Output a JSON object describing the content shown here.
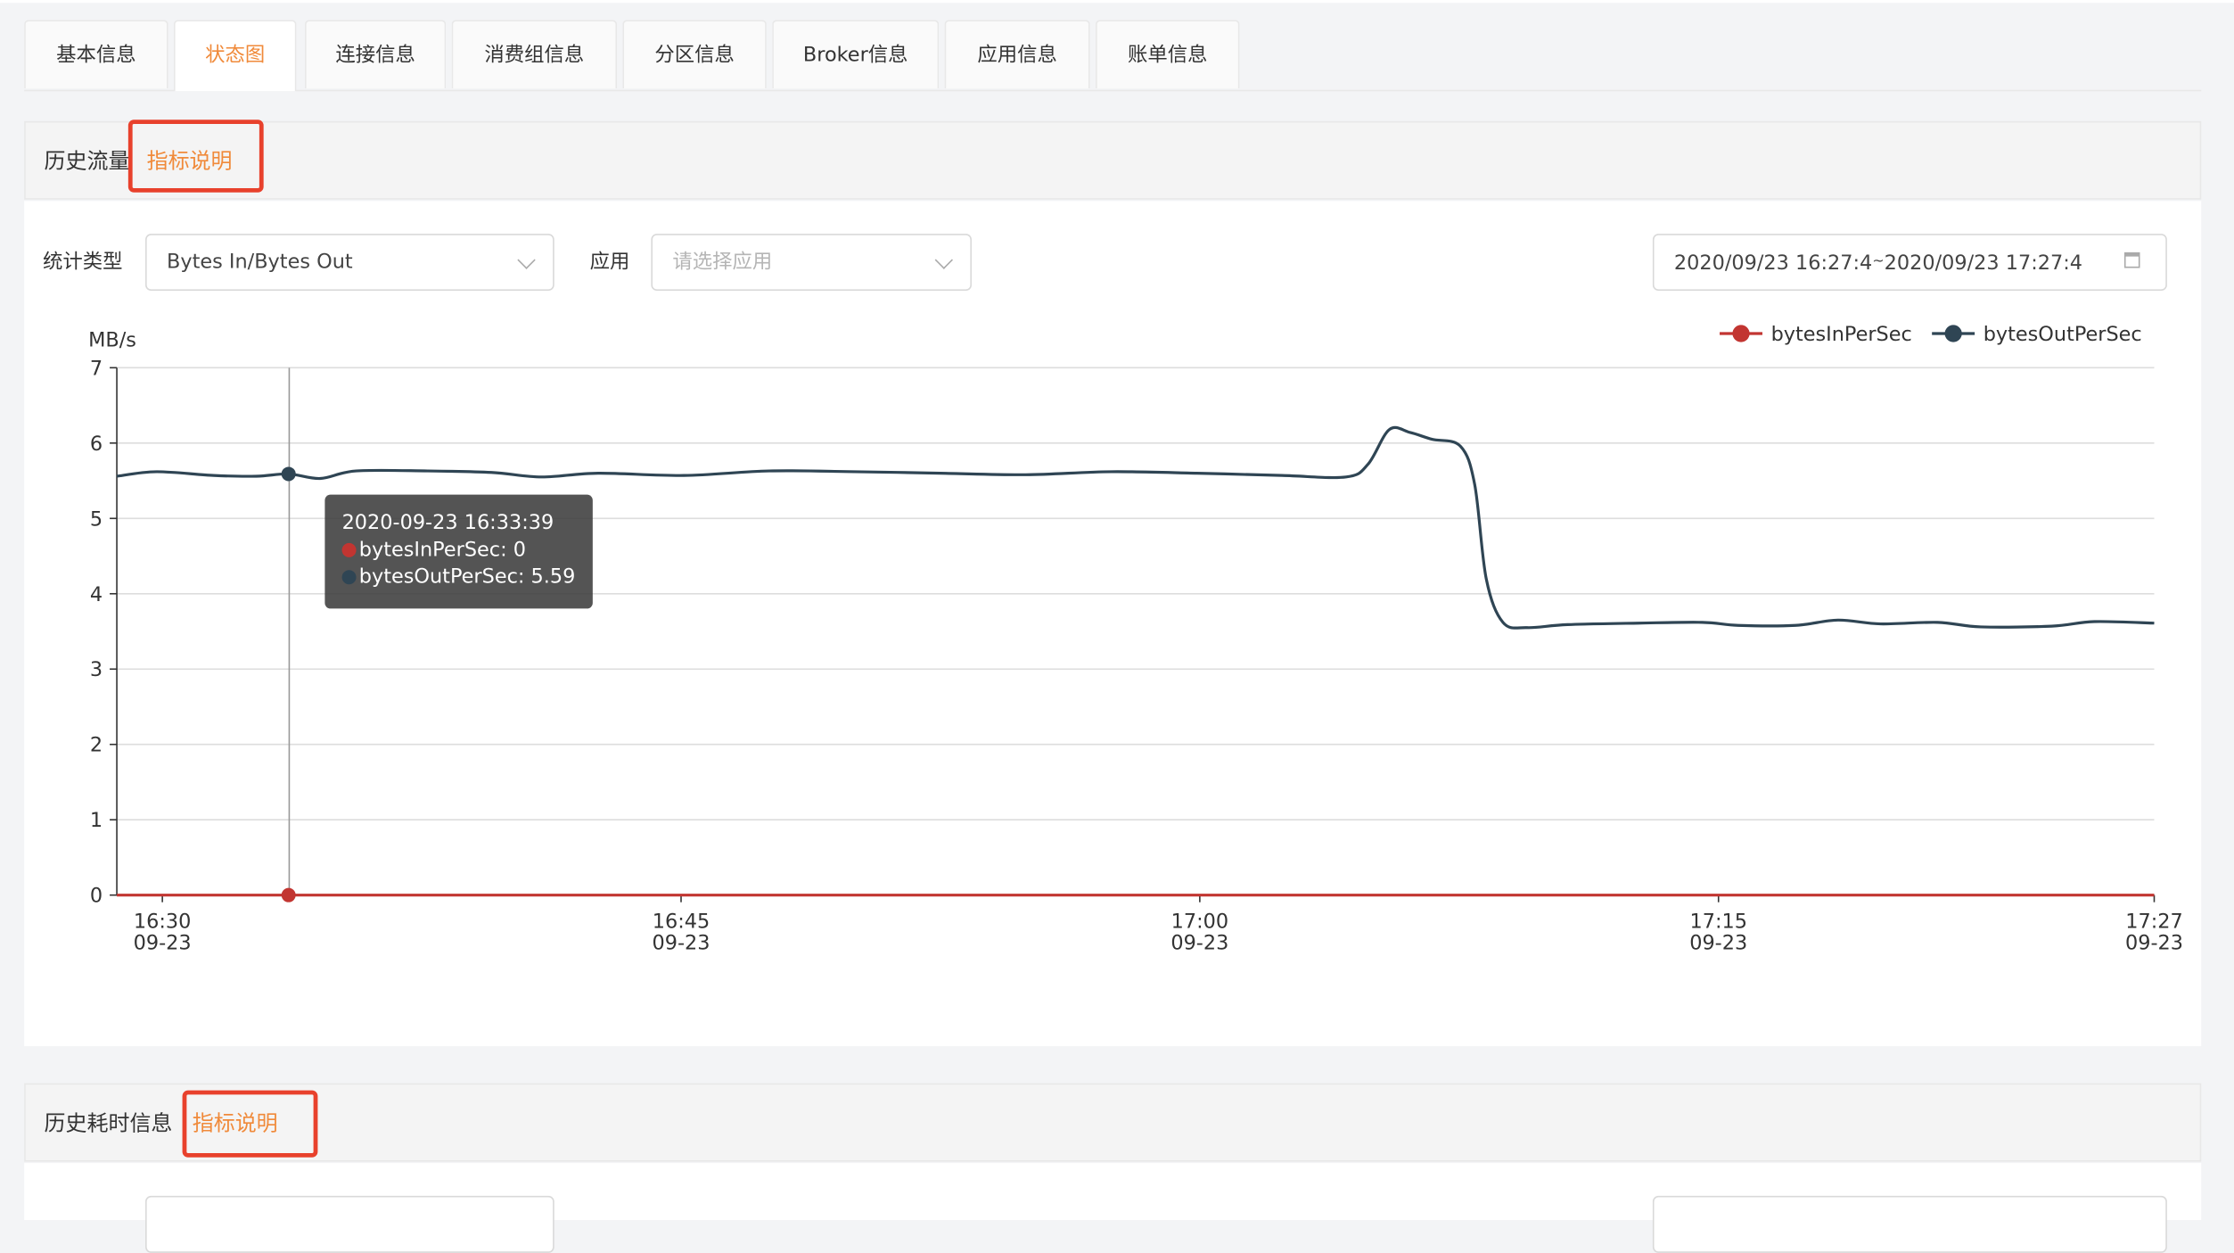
{
  "tabs": [
    {
      "label": "基本信息",
      "active": false
    },
    {
      "label": "状态图",
      "active": true
    },
    {
      "label": "连接信息",
      "active": false
    },
    {
      "label": "消费组信息",
      "active": false
    },
    {
      "label": "分区信息",
      "active": false
    },
    {
      "label": "Broker信息",
      "active": false
    },
    {
      "label": "应用信息",
      "active": false
    },
    {
      "label": "账单信息",
      "active": false
    }
  ],
  "section1": {
    "title": "历史流量",
    "link": "指标说明",
    "stat_type_label": "统计类型",
    "stat_type_value": "Bytes In/Bytes Out",
    "app_label": "应用",
    "app_placeholder": "请选择应用",
    "date_range": "2020/09/23 16:27:44 ~ 2020/09/23 17:27:44",
    "date_start": "2020/09/23 16:27:4",
    "date_sep": "~",
    "date_end": "2020/09/23 17:27:4"
  },
  "section2": {
    "title": "历史耗时信息",
    "link": "指标说明"
  },
  "tooltip": {
    "time": "2020-09-23 16:33:39",
    "line1": "bytesInPerSec: 0",
    "line2": "bytesOutPerSec: 5.59"
  },
  "colors": {
    "accent": "#f08a3a",
    "highlight": "#e8412c",
    "bytesIn": "#c23531",
    "bytesOut": "#2f4554"
  },
  "chart_data": {
    "type": "line",
    "ylabel": "MB/s",
    "ylim": [
      0,
      7
    ],
    "yticks": [
      "0",
      "1",
      "2",
      "3",
      "4",
      "5",
      "6",
      "7"
    ],
    "xlim": [
      "16:28:41",
      "17:27:36"
    ],
    "xticks": [
      {
        "time": "16:30:00",
        "label": "16:30",
        "date": "09-23"
      },
      {
        "time": "16:45:00",
        "label": "16:45",
        "date": "09-23"
      },
      {
        "time": "17:00:00",
        "label": "17:00",
        "date": "09-23"
      },
      {
        "time": "17:15:00",
        "label": "17:15",
        "date": "09-23"
      },
      {
        "time": "17:27:36",
        "label": "17:27",
        "date": "09-23"
      }
    ],
    "grid": true,
    "legend": "top-right",
    "hover_time": "16:33:39",
    "series": [
      {
        "name": "bytesInPerSec",
        "color": "#c23531",
        "points": [
          [
            "16:28:41",
            0
          ],
          [
            "17:27:36",
            0
          ]
        ]
      },
      {
        "name": "bytesOutPerSec",
        "color": "#2f4554",
        "points": [
          [
            "16:28:41",
            5.56
          ],
          [
            "16:29:50",
            5.62
          ],
          [
            "16:31:29",
            5.57
          ],
          [
            "16:32:43",
            5.56
          ],
          [
            "16:33:39",
            5.59
          ],
          [
            "16:34:34",
            5.53
          ],
          [
            "16:35:36",
            5.63
          ],
          [
            "16:37:40",
            5.63
          ],
          [
            "16:39:31",
            5.61
          ],
          [
            "16:40:58",
            5.55
          ],
          [
            "16:42:36",
            5.6
          ],
          [
            "16:45:05",
            5.57
          ],
          [
            "16:47:33",
            5.63
          ],
          [
            "16:50:01",
            5.62
          ],
          [
            "16:52:30",
            5.6
          ],
          [
            "16:54:58",
            5.58
          ],
          [
            "16:57:26",
            5.62
          ],
          [
            "16:59:55",
            5.6
          ],
          [
            "17:02:23",
            5.57
          ],
          [
            "17:04:14",
            5.55
          ],
          [
            "17:04:52",
            5.72
          ],
          [
            "17:05:29",
            6.18
          ],
          [
            "17:06:05",
            6.14
          ],
          [
            "17:06:43",
            6.05
          ],
          [
            "17:07:32",
            5.96
          ],
          [
            "17:07:57",
            5.45
          ],
          [
            "17:08:17",
            4.2
          ],
          [
            "17:08:46",
            3.62
          ],
          [
            "17:09:28",
            3.55
          ],
          [
            "17:10:38",
            3.59
          ],
          [
            "17:12:41",
            3.61
          ],
          [
            "17:14:32",
            3.62
          ],
          [
            "17:15:34",
            3.58
          ],
          [
            "17:17:13",
            3.58
          ],
          [
            "17:18:27",
            3.65
          ],
          [
            "17:19:41",
            3.6
          ],
          [
            "17:21:20",
            3.62
          ],
          [
            "17:22:35",
            3.56
          ],
          [
            "17:24:38",
            3.57
          ],
          [
            "17:25:52",
            3.63
          ],
          [
            "17:27:36",
            3.61
          ]
        ]
      }
    ]
  }
}
